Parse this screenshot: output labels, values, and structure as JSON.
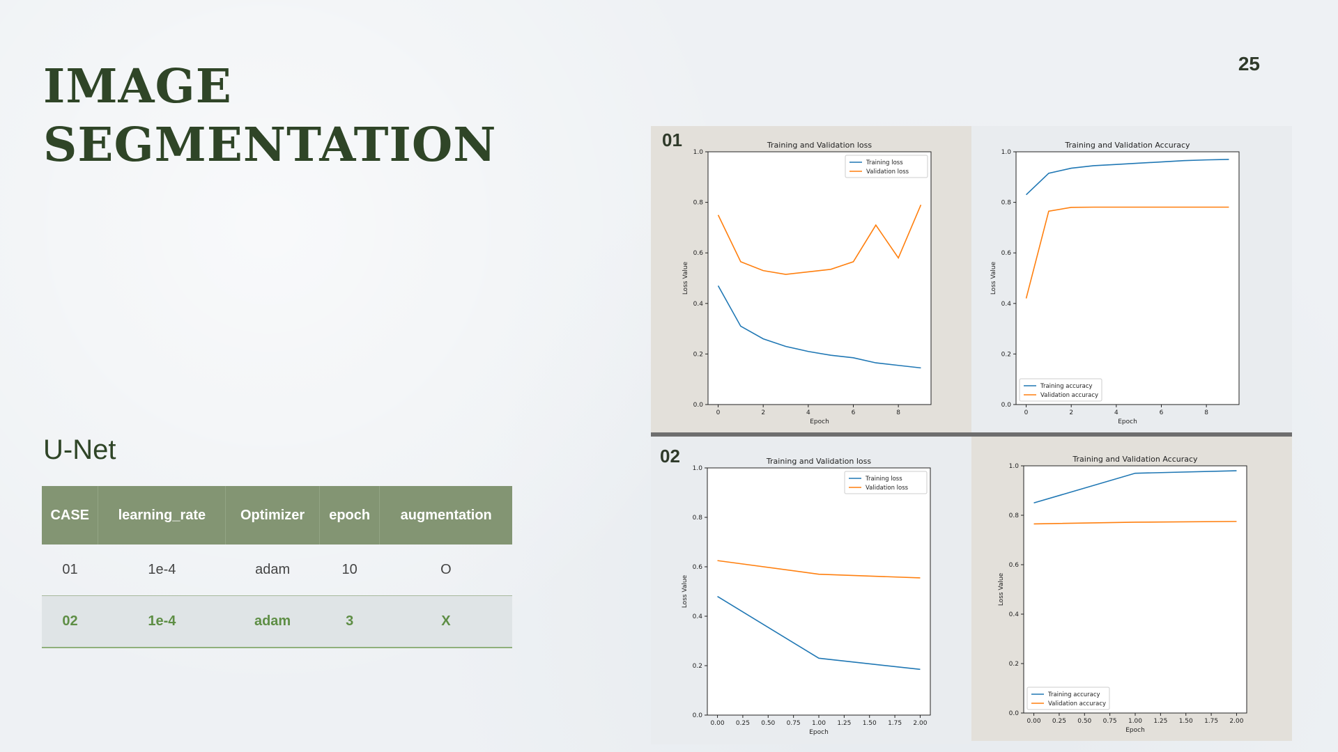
{
  "slide": {
    "title_line1": "image",
    "title_line2": "segmentation",
    "page_number": "25",
    "subtitle": "U-Net"
  },
  "table": {
    "headers": [
      "CASE",
      "learning_rate",
      "Optimizer",
      "epoch",
      "augmentation"
    ],
    "rows": [
      [
        "01",
        "1e-4",
        "adam",
        "10",
        "O"
      ],
      [
        "02",
        "1e-4",
        "adam",
        "3",
        "X"
      ]
    ]
  },
  "cases": [
    {
      "label": "01"
    },
    {
      "label": "02"
    }
  ],
  "colors": {
    "title": "#2f4527",
    "header_bg": "#839573",
    "highlight_text": "#5e8e45",
    "train_line": "#1f77b4",
    "val_line": "#ff7f0e"
  },
  "chart_data": [
    {
      "type": "line",
      "title": "Training and Validation loss",
      "xlabel": "Epoch",
      "ylabel": "Loss Value",
      "xlim": [
        -0.45,
        9.45
      ],
      "ylim": [
        0.0,
        1.0
      ],
      "xticks": [
        0,
        2,
        4,
        6,
        8
      ],
      "xtick_labels": [
        "0",
        "2",
        "4",
        "6",
        "8"
      ],
      "yticks": [
        0.0,
        0.2,
        0.4,
        0.6,
        0.8,
        1.0
      ],
      "ytick_labels": [
        "0.0",
        "0.2",
        "0.4",
        "0.6",
        "0.8",
        "1.0"
      ],
      "legend": "top-right",
      "x": [
        0,
        1,
        2,
        3,
        4,
        5,
        6,
        7,
        8,
        9
      ],
      "series": [
        {
          "name": "Training loss",
          "values": [
            0.47,
            0.31,
            0.26,
            0.23,
            0.21,
            0.195,
            0.185,
            0.165,
            0.155,
            0.145
          ]
        },
        {
          "name": "Validation loss",
          "values": [
            0.75,
            0.565,
            0.53,
            0.515,
            0.525,
            0.535,
            0.565,
            0.71,
            0.58,
            0.79
          ]
        }
      ]
    },
    {
      "type": "line",
      "title": "Training and Validation Accuracy",
      "xlabel": "Epoch",
      "ylabel": "Loss Value",
      "xlim": [
        -0.45,
        9.45
      ],
      "ylim": [
        0.0,
        1.0
      ],
      "xticks": [
        0,
        2,
        4,
        6,
        8
      ],
      "xtick_labels": [
        "0",
        "2",
        "4",
        "6",
        "8"
      ],
      "yticks": [
        0.0,
        0.2,
        0.4,
        0.6,
        0.8,
        1.0
      ],
      "ytick_labels": [
        "0.0",
        "0.2",
        "0.4",
        "0.6",
        "0.8",
        "1.0"
      ],
      "legend": "bottom-left",
      "x": [
        0,
        1,
        2,
        3,
        4,
        5,
        6,
        7,
        8,
        9
      ],
      "series": [
        {
          "name": "Training accuracy",
          "values": [
            0.83,
            0.915,
            0.935,
            0.945,
            0.95,
            0.955,
            0.96,
            0.965,
            0.968,
            0.97
          ]
        },
        {
          "name": "Validation accuracy",
          "values": [
            0.42,
            0.765,
            0.78,
            0.781,
            0.781,
            0.781,
            0.781,
            0.781,
            0.781,
            0.781
          ]
        }
      ]
    },
    {
      "type": "line",
      "title": "Training and Validation loss",
      "xlabel": "Epoch",
      "ylabel": "Loss Value",
      "xlim": [
        -0.1,
        2.1
      ],
      "ylim": [
        0.0,
        1.0
      ],
      "xticks": [
        0,
        0.25,
        0.5,
        0.75,
        1.0,
        1.25,
        1.5,
        1.75,
        2.0
      ],
      "xtick_labels": [
        "0.00",
        "0.25",
        "0.50",
        "0.75",
        "1.00",
        "1.25",
        "1.50",
        "1.75",
        "2.00"
      ],
      "yticks": [
        0.0,
        0.2,
        0.4,
        0.6,
        0.8,
        1.0
      ],
      "ytick_labels": [
        "0.0",
        "0.2",
        "0.4",
        "0.6",
        "0.8",
        "1.0"
      ],
      "legend": "top-right",
      "x": [
        0,
        1,
        2
      ],
      "series": [
        {
          "name": "Training loss",
          "values": [
            0.48,
            0.23,
            0.185
          ]
        },
        {
          "name": "Validation loss",
          "values": [
            0.625,
            0.57,
            0.555
          ]
        }
      ]
    },
    {
      "type": "line",
      "title": "Training and Validation Accuracy",
      "xlabel": "Epoch",
      "ylabel": "Loss Value",
      "xlim": [
        -0.1,
        2.1
      ],
      "ylim": [
        0.0,
        1.0
      ],
      "xticks": [
        0,
        0.25,
        0.5,
        0.75,
        1.0,
        1.25,
        1.5,
        1.75,
        2.0
      ],
      "xtick_labels": [
        "0.00",
        "0.25",
        "0.50",
        "0.75",
        "1.00",
        "1.25",
        "1.50",
        "1.75",
        "2.00"
      ],
      "yticks": [
        0.0,
        0.2,
        0.4,
        0.6,
        0.8,
        1.0
      ],
      "ytick_labels": [
        "0.0",
        "0.2",
        "0.4",
        "0.6",
        "0.8",
        "1.0"
      ],
      "legend": "bottom-left",
      "x": [
        0,
        1,
        2
      ],
      "series": [
        {
          "name": "Training accuracy",
          "values": [
            0.85,
            0.97,
            0.98
          ]
        },
        {
          "name": "Validation accuracy",
          "values": [
            0.765,
            0.772,
            0.775
          ]
        }
      ]
    }
  ]
}
